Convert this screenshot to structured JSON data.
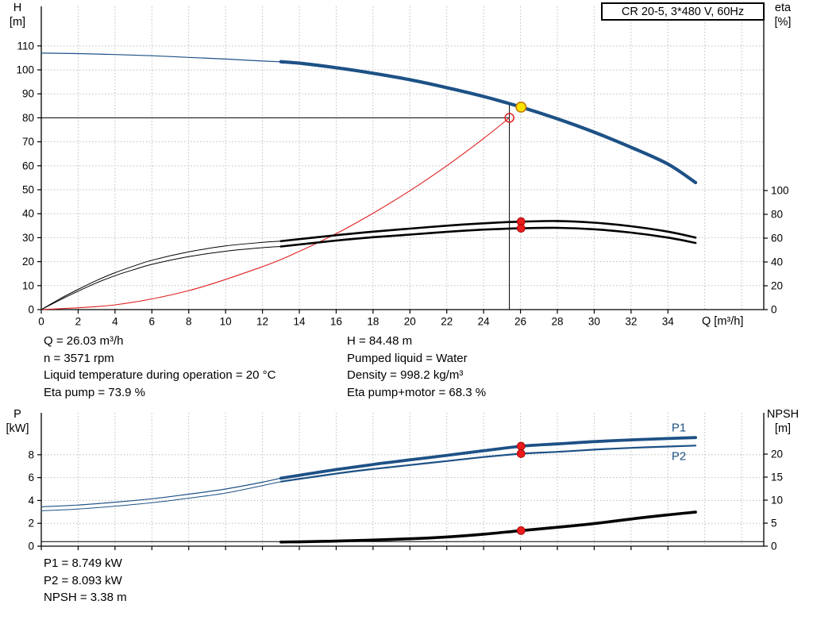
{
  "title_box": {
    "label": "CR 20-5, 3*480 V, 60Hz"
  },
  "info": {
    "top_left": [
      "Q = 26.03 m³/h",
      "n = 3571 rpm",
      "Liquid temperature during operation = 20 °C",
      "Eta pump = 73.9 %"
    ],
    "top_right": [
      "H = 84.48 m",
      "Pumped liquid = Water",
      "Density = 998.2 kg/m³",
      "Eta pump+motor = 68.3 %"
    ],
    "bottom": [
      "P1 = 8.749 kW",
      "P2 = 8.093 kW",
      "NPSH = 3.38 m"
    ]
  },
  "colors": {
    "curve_blue": "#1d5186",
    "curve_black": "#000000",
    "curve_red": "#e02020",
    "marker_red": "#e81c1c",
    "marker_yellow": "#ffe400",
    "marker_yellow_ring": "#c87800",
    "grid": "#bdbdbd"
  },
  "chart_data": [
    {
      "type": "line",
      "name": "head-efficiency-chart",
      "title": "CR 20-5, 3*480 V, 60Hz",
      "xlabel": "Q [m³/h]",
      "ylabel_left": [
        "H",
        "[m]"
      ],
      "ylabel_right": [
        "eta",
        "[%]"
      ],
      "xlim": [
        0,
        39.2
      ],
      "ylim_left": [
        0,
        126.5
      ],
      "ylim_right": [
        0,
        254.7
      ],
      "xticks": [
        0,
        2,
        4,
        6,
        8,
        10,
        12,
        14,
        16,
        18,
        20,
        22,
        24,
        26,
        28,
        30,
        32,
        34
      ],
      "xgrid_extra": [
        36,
        38
      ],
      "yticks_left": [
        0,
        10,
        20,
        30,
        40,
        50,
        60,
        70,
        80,
        90,
        100,
        110
      ],
      "yticks_right": [
        0,
        20,
        40,
        60,
        80,
        100
      ],
      "grid": true,
      "legend": "none",
      "series": [
        {
          "name": "duty-head-line",
          "axis": "left",
          "color": "#000000",
          "width": 1,
          "straight": true,
          "points": [
            [
              0,
              80
            ],
            [
              25.4,
              80
            ]
          ]
        },
        {
          "name": "duty-flow-line",
          "axis": "left",
          "color": "#000000",
          "width": 1,
          "straight": true,
          "points": [
            [
              25.4,
              0
            ],
            [
              25.4,
              85.3
            ]
          ]
        },
        {
          "name": "system-curve",
          "axis": "left",
          "color": "#e02020",
          "width": 1.1,
          "points": [
            [
              0,
              0
            ],
            [
              4,
              2
            ],
            [
              8,
              7.9
            ],
            [
              12,
              17.9
            ],
            [
              14,
              24.3
            ],
            [
              16,
              31.7
            ],
            [
              18,
              40.2
            ],
            [
              20,
              49.6
            ],
            [
              22,
              60
            ],
            [
              24,
              71.4
            ],
            [
              25.4,
              80
            ]
          ]
        },
        {
          "name": "eta-pump-curve-low",
          "axis": "right",
          "color": "#000000",
          "width": 1,
          "points": [
            [
              0,
              0
            ],
            [
              1,
              9
            ],
            [
              2,
              17
            ],
            [
              3,
              24.5
            ],
            [
              4,
              31
            ],
            [
              5,
              36.5
            ],
            [
              6,
              41.5
            ],
            [
              8,
              48.5
            ],
            [
              10,
              53.5
            ],
            [
              12,
              56.5
            ],
            [
              13,
              57.5
            ]
          ]
        },
        {
          "name": "eta-pump-motor-curve-low",
          "axis": "right",
          "color": "#000000",
          "width": 1,
          "points": [
            [
              0,
              0
            ],
            [
              1,
              8
            ],
            [
              2,
              15.5
            ],
            [
              3,
              22.5
            ],
            [
              4,
              28.5
            ],
            [
              5,
              33.5
            ],
            [
              6,
              38
            ],
            [
              8,
              44.5
            ],
            [
              10,
              49
            ],
            [
              12,
              52
            ],
            [
              13,
              53
            ]
          ]
        },
        {
          "name": "eta-pump-curve",
          "axis": "right",
          "color": "#000000",
          "width": 2.6,
          "points": [
            [
              13,
              57.5
            ],
            [
              16,
              62.5
            ],
            [
              18,
              65.5
            ],
            [
              20,
              68
            ],
            [
              22,
              70.5
            ],
            [
              24,
              72.5
            ],
            [
              26.03,
              73.9
            ],
            [
              28,
              74.4
            ],
            [
              30,
              73
            ],
            [
              32,
              70
            ],
            [
              34,
              65.5
            ],
            [
              35.5,
              60.5
            ]
          ]
        },
        {
          "name": "eta-pump-motor-curve",
          "axis": "right",
          "color": "#000000",
          "width": 2.6,
          "points": [
            [
              13,
              53
            ],
            [
              16,
              58
            ],
            [
              18,
              60.8
            ],
            [
              20,
              63
            ],
            [
              22,
              65.3
            ],
            [
              24,
              67.2
            ],
            [
              26.03,
              68.3
            ],
            [
              28,
              68.7
            ],
            [
              30,
              67.5
            ],
            [
              32,
              64.7
            ],
            [
              34,
              60.5
            ],
            [
              35.5,
              56
            ]
          ]
        },
        {
          "name": "head-curve-low",
          "axis": "left",
          "color": "#1d5186",
          "width": 1.2,
          "points": [
            [
              0,
              107
            ],
            [
              2,
              106.8
            ],
            [
              4,
              106.4
            ],
            [
              6,
              105.9
            ],
            [
              8,
              105.2
            ],
            [
              10,
              104.5
            ],
            [
              12,
              103.7
            ],
            [
              13,
              103.4
            ]
          ]
        },
        {
          "name": "head-curve",
          "axis": "left",
          "color": "#1d5186",
          "width": 4.2,
          "points": [
            [
              13,
              103.4
            ],
            [
              14,
              102.8
            ],
            [
              16,
              100.9
            ],
            [
              18,
              98.6
            ],
            [
              20,
              95.9
            ],
            [
              22,
              92.6
            ],
            [
              24,
              88.9
            ],
            [
              26.03,
              84.48
            ],
            [
              28,
              79.6
            ],
            [
              30,
              74
            ],
            [
              32,
              67.7
            ],
            [
              34,
              60.7
            ],
            [
              35.5,
              53
            ]
          ]
        }
      ],
      "markers": [
        {
          "name": "eta-pump-point",
          "x": 26.03,
          "y": 73.9,
          "axis": "right",
          "r": 5,
          "fill": "#e81c1c",
          "stroke": "#a00000",
          "sw": 0.8
        },
        {
          "name": "eta-pump-motor-point",
          "x": 26.03,
          "y": 68.3,
          "axis": "right",
          "r": 5,
          "fill": "#e81c1c",
          "stroke": "#a00000",
          "sw": 0.8
        },
        {
          "name": "rated-duty-point",
          "x": 25.4,
          "y": 80,
          "axis": "left",
          "r": 5.5,
          "fill": "none",
          "stroke": "#e02020",
          "sw": 1.5
        },
        {
          "name": "operating-point",
          "x": 26.03,
          "y": 84.48,
          "axis": "left",
          "r": 6.2,
          "fill": "#ffe400",
          "stroke": "#c87800",
          "sw": 1.6
        }
      ],
      "labels": []
    },
    {
      "type": "line",
      "name": "power-npsh-chart",
      "title": "",
      "xlabel": "",
      "ylabel_left": [
        "P",
        "[kW]"
      ],
      "ylabel_right": [
        "NPSH",
        "[m]"
      ],
      "xlim": [
        0,
        39.2
      ],
      "ylim_left": [
        0,
        11.67
      ],
      "ylim_right": [
        0,
        28.97
      ],
      "xticks": [
        0,
        2,
        4,
        6,
        8,
        10,
        12,
        14,
        16,
        18,
        20,
        22,
        24,
        26,
        28,
        30,
        32,
        34
      ],
      "xgrid_extra": [
        36,
        38
      ],
      "yticks_left": [
        0,
        2,
        4,
        6,
        8
      ],
      "yticks_right": [
        0,
        5,
        10,
        15,
        20
      ],
      "grid": true,
      "legend": "inline",
      "series": [
        {
          "name": "npsh-baseline",
          "axis": "right",
          "color": "#000000",
          "width": 1,
          "straight": true,
          "points": [
            [
              0,
              1.0
            ],
            [
              39.2,
              1.0
            ]
          ]
        },
        {
          "name": "p1-curve-low",
          "axis": "left",
          "color": "#1d5186",
          "width": 1.2,
          "points": [
            [
              0,
              3.45
            ],
            [
              2,
              3.6
            ],
            [
              4,
              3.85
            ],
            [
              6,
              4.15
            ],
            [
              8,
              4.55
            ],
            [
              10,
              5.0
            ],
            [
              12,
              5.6
            ],
            [
              13,
              5.95
            ]
          ]
        },
        {
          "name": "p2-curve-low",
          "axis": "left",
          "color": "#1d5186",
          "width": 1,
          "points": [
            [
              0,
              3.1
            ],
            [
              2,
              3.25
            ],
            [
              4,
              3.5
            ],
            [
              6,
              3.8
            ],
            [
              8,
              4.2
            ],
            [
              10,
              4.65
            ],
            [
              12,
              5.3
            ],
            [
              13,
              5.65
            ]
          ]
        },
        {
          "name": "p1-curve",
          "axis": "left",
          "color": "#1d5186",
          "width": 3.8,
          "points": [
            [
              13,
              5.95
            ],
            [
              14,
              6.2
            ],
            [
              16,
              6.7
            ],
            [
              18,
              7.15
            ],
            [
              20,
              7.55
            ],
            [
              22,
              7.95
            ],
            [
              24,
              8.35
            ],
            [
              26.03,
              8.749
            ],
            [
              28,
              8.95
            ],
            [
              30,
              9.15
            ],
            [
              32,
              9.3
            ],
            [
              34,
              9.42
            ],
            [
              35.5,
              9.5
            ]
          ]
        },
        {
          "name": "p2-curve",
          "axis": "left",
          "color": "#1d5186",
          "width": 2.2,
          "points": [
            [
              13,
              5.65
            ],
            [
              16,
              6.35
            ],
            [
              18,
              6.75
            ],
            [
              20,
              7.1
            ],
            [
              22,
              7.45
            ],
            [
              24,
              7.8
            ],
            [
              26.03,
              8.093
            ],
            [
              28,
              8.25
            ],
            [
              30,
              8.45
            ],
            [
              32,
              8.6
            ],
            [
              34,
              8.72
            ],
            [
              35.5,
              8.8
            ]
          ]
        },
        {
          "name": "npsh-curve",
          "axis": "right",
          "color": "#000000",
          "width": 3.6,
          "points": [
            [
              13,
              0.9
            ],
            [
              16,
              1.1
            ],
            [
              20,
              1.6
            ],
            [
              22,
              2.0
            ],
            [
              24,
              2.6
            ],
            [
              26.03,
              3.38
            ],
            [
              28,
              4.1
            ],
            [
              30,
              4.9
            ],
            [
              32,
              5.9
            ],
            [
              34,
              6.8
            ],
            [
              35.5,
              7.4
            ]
          ]
        }
      ],
      "markers": [
        {
          "name": "p1-point",
          "x": 26.03,
          "y": 8.749,
          "axis": "left",
          "r": 5,
          "fill": "#e81c1c",
          "stroke": "#a00000",
          "sw": 0.8
        },
        {
          "name": "p2-point",
          "x": 26.03,
          "y": 8.093,
          "axis": "left",
          "r": 5,
          "fill": "#e81c1c",
          "stroke": "#a00000",
          "sw": 0.8
        },
        {
          "name": "npsh-point",
          "x": 26.03,
          "y": 3.38,
          "axis": "right",
          "r": 5,
          "fill": "#e81c1c",
          "stroke": "#a00000",
          "sw": 0.8
        }
      ],
      "labels": [
        {
          "name": "p1-curve-label",
          "text": "P1",
          "x": 34.2,
          "y": 10.35,
          "axis": "left",
          "color": "#1d5186"
        },
        {
          "name": "p2-curve-label",
          "text": "P2",
          "x": 34.2,
          "y": 7.85,
          "axis": "left",
          "color": "#1d5186"
        }
      ]
    }
  ]
}
